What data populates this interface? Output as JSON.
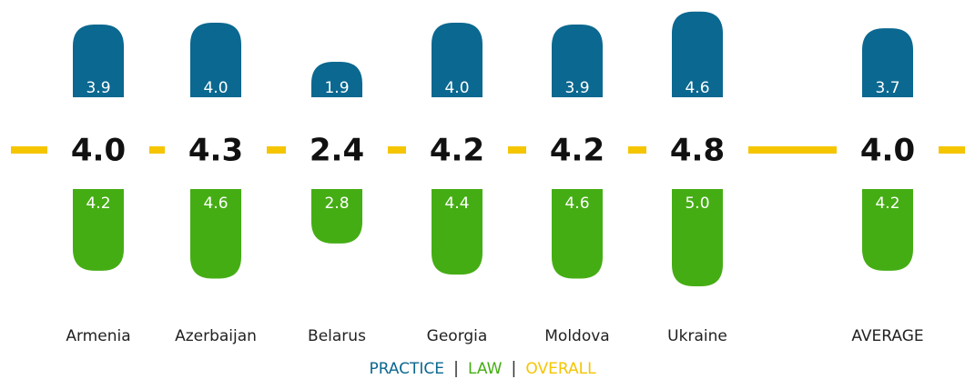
{
  "chart_data": {
    "type": "diverging-bar",
    "categories": [
      "Armenia",
      "Azerbaijan",
      "Belarus",
      "Georgia",
      "Moldova",
      "Ukraine",
      "AVERAGE"
    ],
    "series": [
      {
        "name": "PRACTICE",
        "color": "#0b6890",
        "values": [
          3.9,
          4.0,
          1.9,
          4.0,
          3.9,
          4.6,
          3.7
        ],
        "value_labels": [
          "3.9",
          "4.0",
          "1.9",
          "4.0",
          "3.9",
          "4.6",
          "3.7"
        ]
      },
      {
        "name": "LAW",
        "color": "#45ad14",
        "values": [
          4.2,
          4.6,
          2.8,
          4.4,
          4.6,
          5.0,
          4.2
        ],
        "value_labels": [
          "4.2",
          "4.6",
          "2.8",
          "4.4",
          "4.6",
          "5.0",
          "4.2"
        ]
      },
      {
        "name": "OVERALL",
        "color": "#f5c500",
        "values": [
          4.0,
          4.3,
          2.4,
          4.2,
          4.2,
          4.8,
          4.0
        ],
        "value_labels": [
          "4.0",
          "4.3",
          "2.4",
          "4.2",
          "4.2",
          "4.8",
          "4.0"
        ]
      }
    ]
  }
}
